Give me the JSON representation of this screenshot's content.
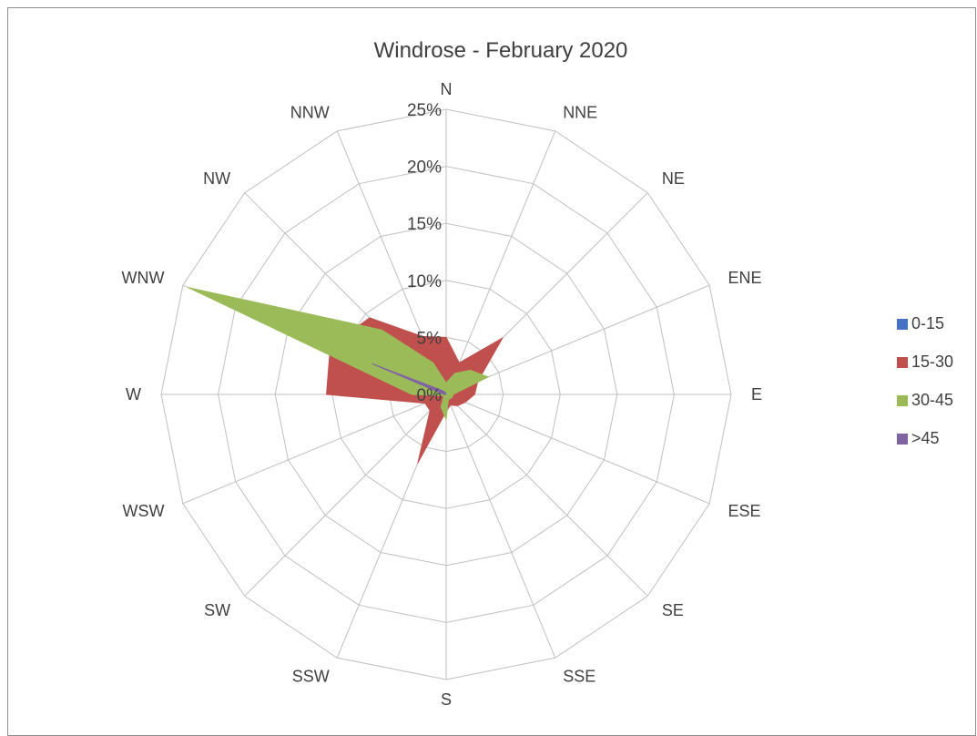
{
  "chart_data": {
    "type": "radar",
    "title": "Windrose - February 2020",
    "categories": [
      "N",
      "NNE",
      "NE",
      "ENE",
      "E",
      "ESE",
      "SE",
      "SSE",
      "S",
      "SSW",
      "SW",
      "WSW",
      "W",
      "WNW",
      "NW",
      "NNW"
    ],
    "r_ticks": [
      "0%",
      "5%",
      "10%",
      "15%",
      "20%",
      "25%"
    ],
    "r_range": [
      0,
      25
    ],
    "grid": true,
    "legend_position": "right",
    "series": [
      {
        "name": "0-15",
        "color": "#4472C4",
        "values": [
          0.2,
          0.1,
          0.1,
          0.1,
          0.1,
          0.1,
          0.1,
          0.1,
          0.1,
          0.1,
          0.1,
          0.1,
          0.2,
          0.2,
          0.2,
          0.2
        ]
      },
      {
        "name": "15-30",
        "color": "#C0504D",
        "values": [
          5,
          3,
          7,
          3,
          2.5,
          1.8,
          1.4,
          1,
          1.5,
          6.5,
          2,
          2,
          10.5,
          11,
          9.5,
          5.5
        ]
      },
      {
        "name": "30-45",
        "color": "#9BBB59",
        "values": [
          1,
          2,
          3,
          4,
          0.6,
          0.6,
          0.5,
          0.5,
          2.2,
          1.2,
          0.3,
          0.3,
          3,
          24.5,
          8,
          3
        ]
      },
      {
        "name": ">45",
        "color": "#8064A2",
        "values": [
          0,
          0,
          0,
          0,
          0,
          0,
          0,
          0,
          0,
          0,
          0,
          0,
          0.2,
          7,
          0.5,
          0.2
        ]
      }
    ]
  }
}
